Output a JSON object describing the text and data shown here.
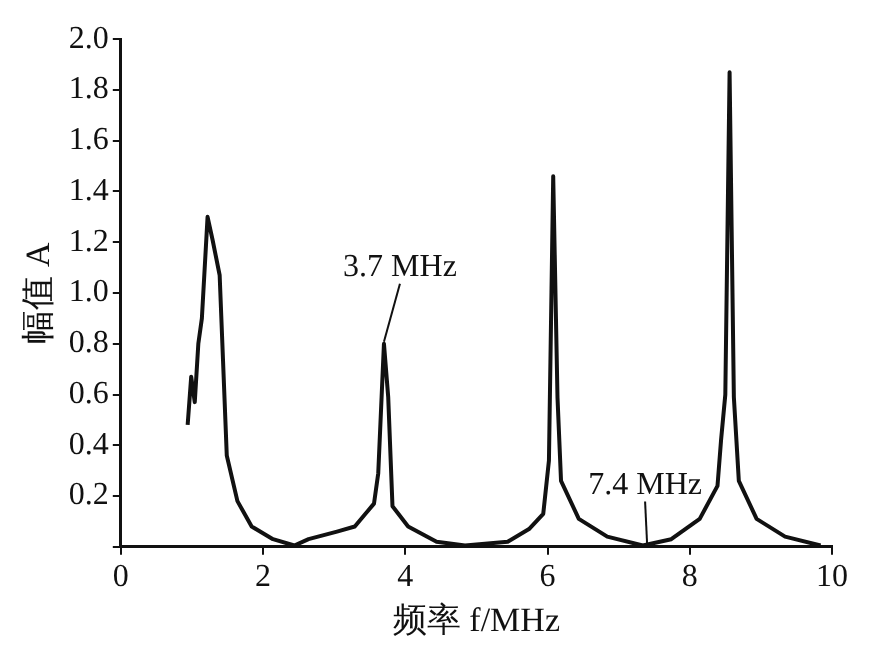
{
  "chart_data": {
    "type": "line",
    "xlabel": "频率 f/MHz",
    "ylabel": "幅值 A",
    "x": [
      0.94,
      0.99,
      1.04,
      1.09,
      1.14,
      1.22,
      1.29,
      1.39,
      1.49,
      1.64,
      1.84,
      2.14,
      2.44,
      2.64,
      3.04,
      3.29,
      3.44,
      3.56,
      3.62,
      3.7,
      3.76,
      3.82,
      4.04,
      4.44,
      4.84,
      5.44,
      5.74,
      5.94,
      6.02,
      6.08,
      6.14,
      6.19,
      6.44,
      6.84,
      7.34,
      7.74,
      8.14,
      8.39,
      8.44,
      8.5,
      8.56,
      8.62,
      8.69,
      8.94,
      9.34,
      9.84
    ],
    "values": [
      0.48,
      0.67,
      0.57,
      0.8,
      0.9,
      1.3,
      1.21,
      1.07,
      0.36,
      0.18,
      0.08,
      0.03,
      0.005,
      0.03,
      0.06,
      0.08,
      0.13,
      0.17,
      0.29,
      0.8,
      0.59,
      0.16,
      0.08,
      0.02,
      0.005,
      0.02,
      0.07,
      0.13,
      0.34,
      1.46,
      0.59,
      0.26,
      0.11,
      0.04,
      0.005,
      0.03,
      0.11,
      0.24,
      0.42,
      0.6,
      1.87,
      0.59,
      0.26,
      0.11,
      0.04,
      0.005
    ],
    "color": "#111111",
    "xlim": [
      0,
      10
    ],
    "xticks": [
      0,
      2,
      4,
      6,
      8,
      10
    ],
    "ylim": [
      0,
      2
    ],
    "yticks": [
      {
        "value": 0,
        "label": null
      },
      0.2,
      0.4,
      0.6,
      0.8,
      {
        "value": 1,
        "label": "1.0"
      },
      1.2,
      1.4,
      1.6,
      1.8,
      {
        "value": 2,
        "label": "2.0"
      }
    ],
    "annotations": [
      {
        "text": "3.7 MHz",
        "x": 3.7,
        "y": 0.8
      },
      {
        "text": "7.4 MHz",
        "x": 7.4,
        "y": 0.005
      }
    ],
    "grid": false,
    "legend": false,
    "marker": "none",
    "line_style": "solid"
  }
}
